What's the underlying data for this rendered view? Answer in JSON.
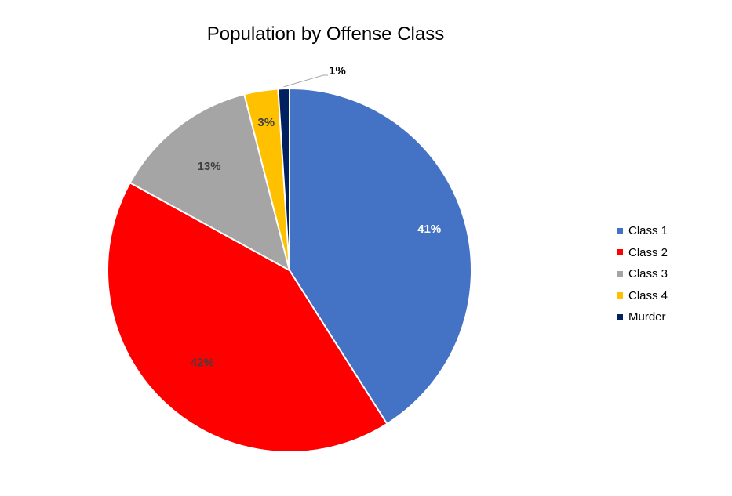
{
  "chart_data": {
    "type": "pie",
    "title": "Population by Offense Class",
    "slices": [
      {
        "name": "Class 1",
        "value": 41,
        "label": "41%",
        "color": "#4472C4",
        "label_color": "#FFFFFF"
      },
      {
        "name": "Class 2",
        "value": 42,
        "label": "42%",
        "color": "#FF0000",
        "label_color": "#404040"
      },
      {
        "name": "Class 3",
        "value": 13,
        "label": "13%",
        "color": "#A5A5A5",
        "label_color": "#404040"
      },
      {
        "name": "Class 4",
        "value": 3,
        "label": "3%",
        "color": "#FFC000",
        "label_color": "#404040"
      },
      {
        "name": "Murder",
        "value": 1,
        "label": "1%",
        "color": "#002060",
        "label_color": "#000000"
      }
    ],
    "legend_position": "right"
  }
}
